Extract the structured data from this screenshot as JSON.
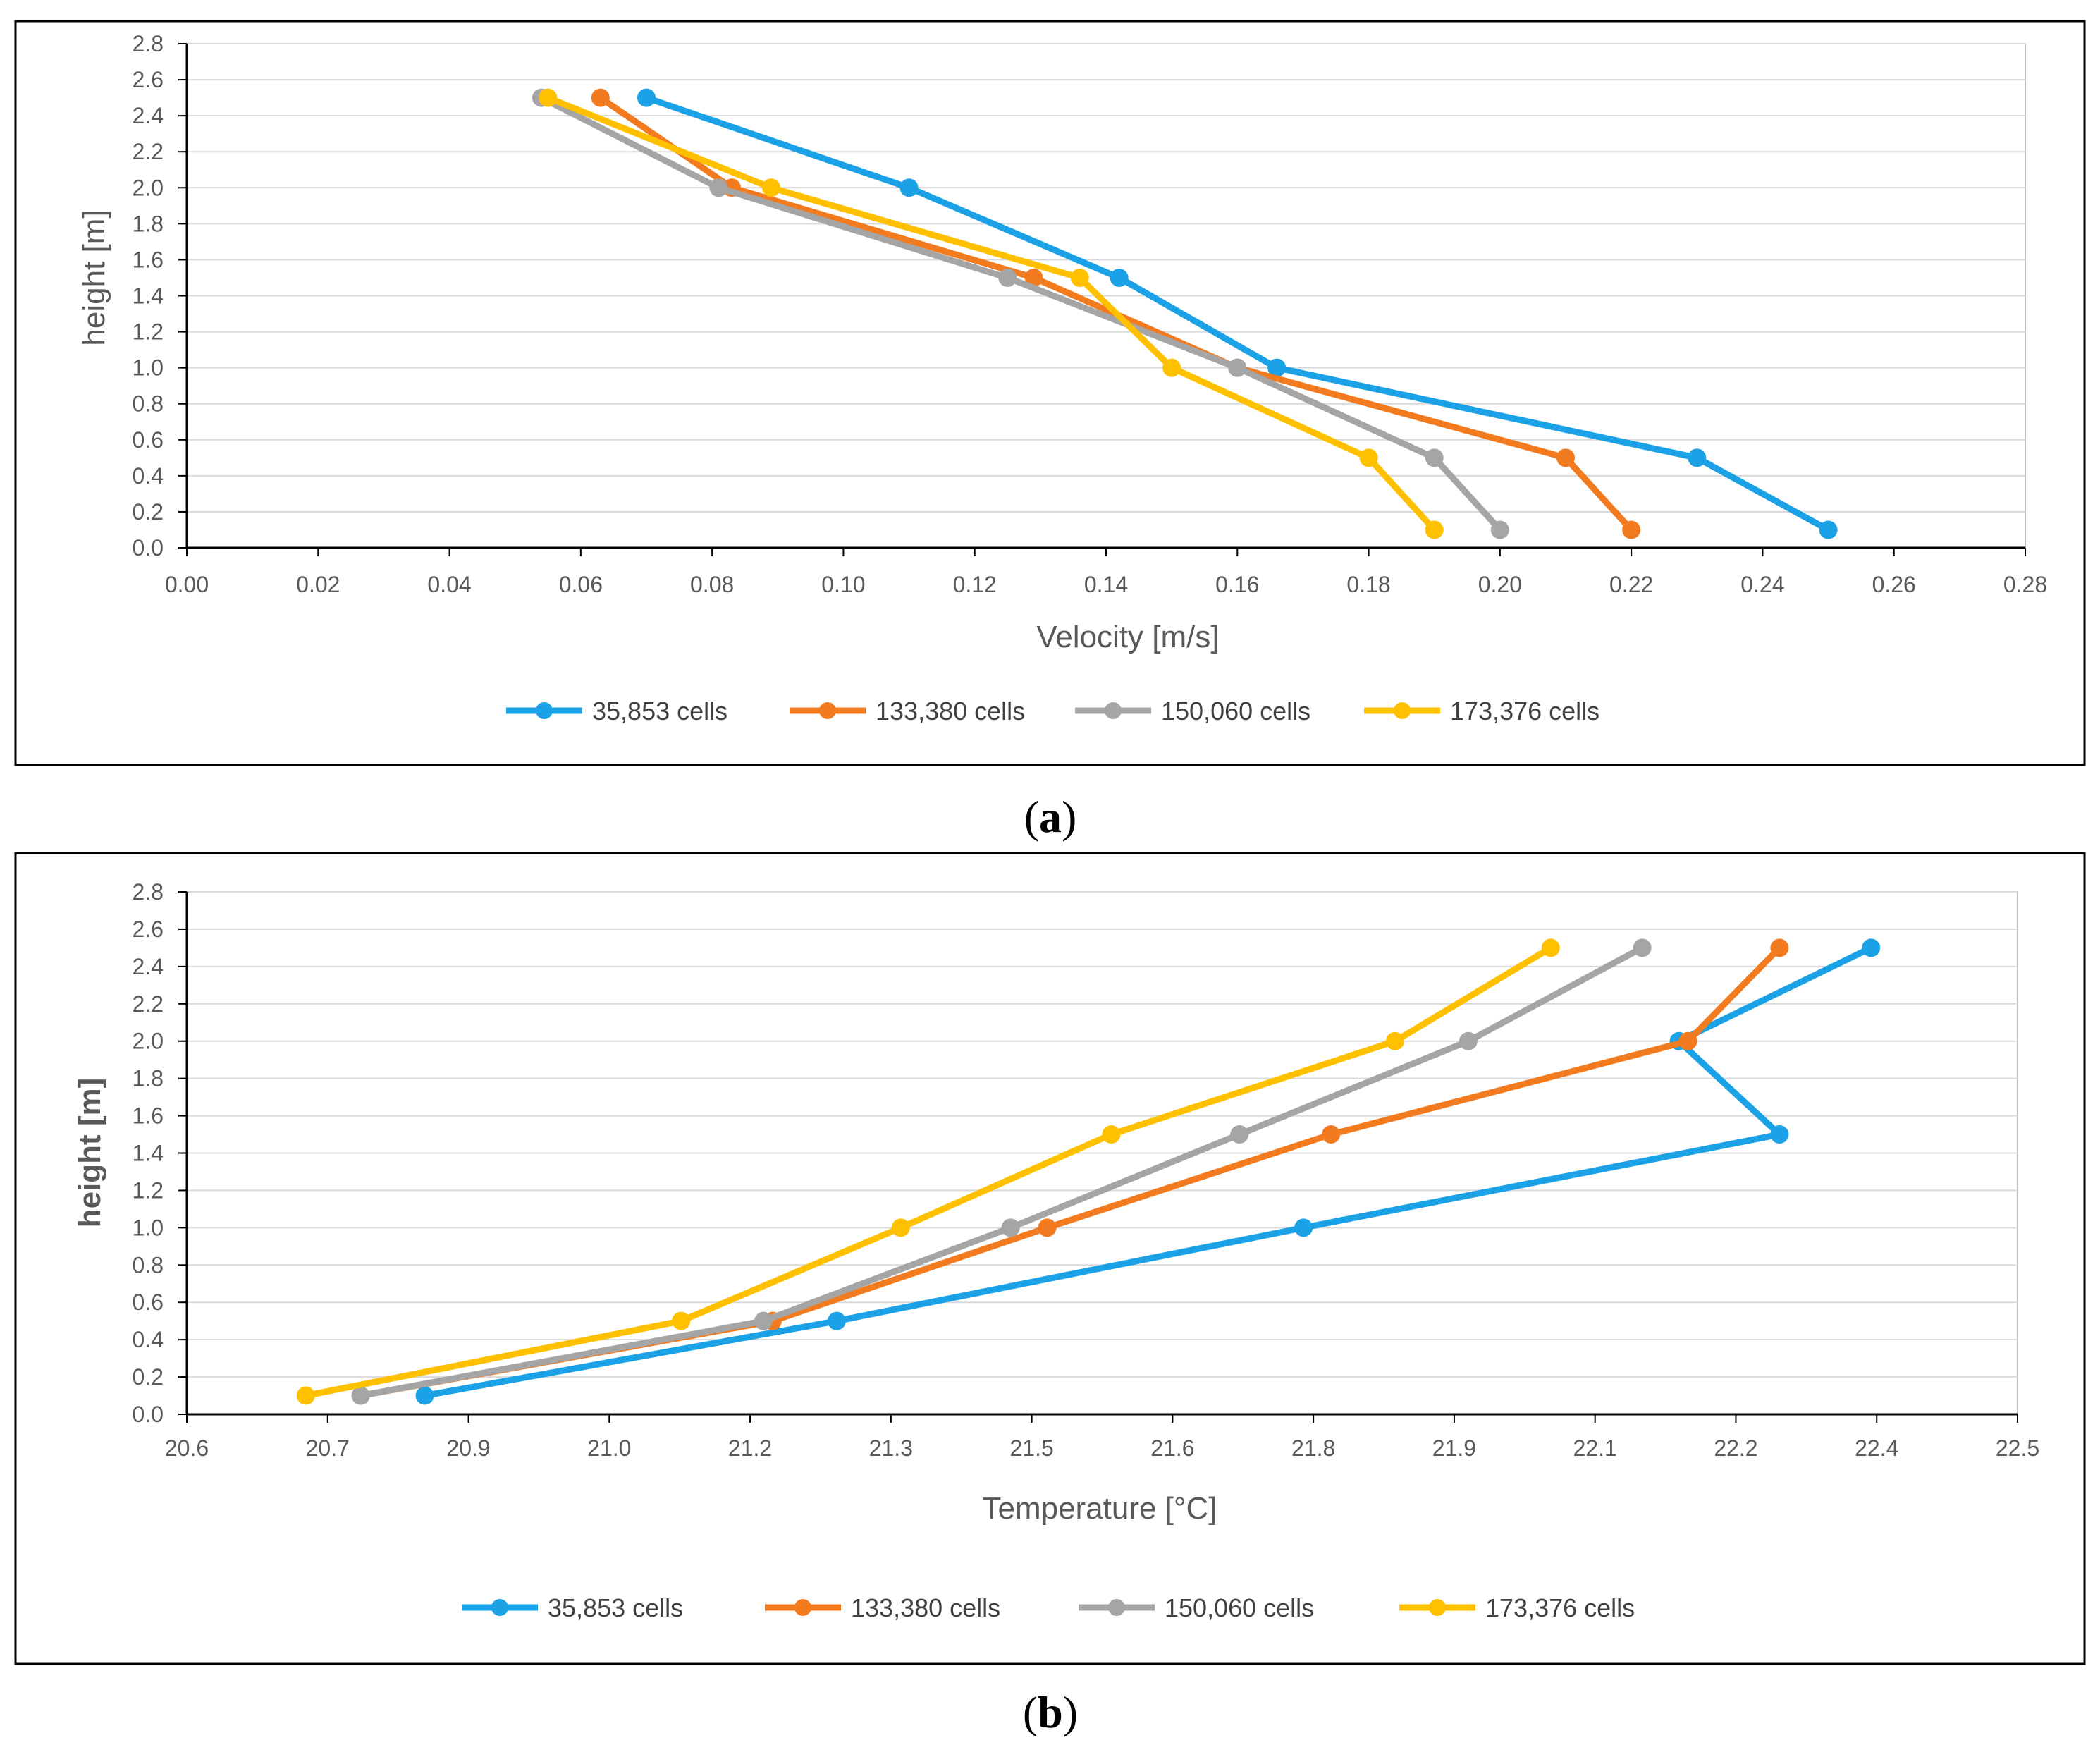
{
  "colors": {
    "series": [
      "#1aa1e6",
      "#f37b1f",
      "#a5a5a5",
      "#ffc000"
    ],
    "grid": "#d9d9d9",
    "axis": "#000000",
    "frame": "#000000"
  },
  "chart_data": [
    {
      "type": "line",
      "caption": {
        "open": "(",
        "letter": "a",
        "close": ")"
      },
      "xlabel": "Velocity [m/s]",
      "ylabel": "height [m]",
      "xlim": [
        0,
        0.28
      ],
      "ylim": [
        0,
        2.8
      ],
      "x_ticks": [
        "0.00",
        "0.02",
        "0.04",
        "0.06",
        "0.08",
        "0.10",
        "0.12",
        "0.14",
        "0.16",
        "0.18",
        "0.20",
        "0.22",
        "0.24",
        "0.26",
        "0.28"
      ],
      "y_ticks": [
        "0.0",
        "0.2",
        "0.4",
        "0.6",
        "0.8",
        "1.0",
        "1.2",
        "1.4",
        "1.6",
        "1.8",
        "2.0",
        "2.2",
        "2.4",
        "2.6",
        "2.8"
      ],
      "grid": "horizontal",
      "legend_position": "bottom",
      "y_values": [
        0.1,
        0.5,
        1.0,
        1.5,
        2.0,
        2.5
      ],
      "series": [
        {
          "name": "35,853 cells",
          "x": [
            0.25,
            0.23,
            0.166,
            0.142,
            0.11,
            0.07
          ]
        },
        {
          "name": "133,380 cells",
          "x": [
            0.22,
            0.21,
            0.16,
            0.129,
            0.083,
            0.063
          ]
        },
        {
          "name": "150,060 cells",
          "x": [
            0.2,
            0.19,
            0.16,
            0.125,
            0.081,
            0.054
          ]
        },
        {
          "name": "173,376 cells",
          "x": [
            0.19,
            0.18,
            0.15,
            0.136,
            0.089,
            0.055
          ]
        }
      ]
    },
    {
      "type": "line",
      "caption": {
        "open": "(",
        "letter": "b",
        "close": ")"
      },
      "xlabel": "Temperature [°C]",
      "ylabel": "height [m]",
      "xlim": [
        20.5,
        22.5
      ],
      "ylim": [
        0,
        2.8
      ],
      "x_ticks": [
        "20.6",
        "20.7",
        "20.9",
        "21.0",
        "21.2",
        "21.3",
        "21.5",
        "21.6",
        "21.8",
        "21.9",
        "22.1",
        "22.2",
        "22.4",
        "22.5"
      ],
      "y_ticks": [
        "0.0",
        "0.2",
        "0.4",
        "0.6",
        "0.8",
        "1.0",
        "1.2",
        "1.4",
        "1.6",
        "1.8",
        "2.0",
        "2.2",
        "2.4",
        "2.6",
        "2.8"
      ],
      "grid": "horizontal",
      "legend_position": "bottom",
      "y_values": [
        0.1,
        0.5,
        1.0,
        1.5,
        2.0,
        2.5
      ],
      "series": [
        {
          "name": "35,853 cells",
          "x": [
            20.76,
            21.21,
            21.72,
            22.24,
            22.13,
            22.34
          ]
        },
        {
          "name": "133,380 cells",
          "x": [
            20.69,
            21.14,
            21.44,
            21.75,
            22.14,
            22.24
          ]
        },
        {
          "name": "150,060 cells",
          "x": [
            20.69,
            21.13,
            21.4,
            21.65,
            21.9,
            22.09
          ]
        },
        {
          "name": "173,376 cells",
          "x": [
            20.63,
            21.04,
            21.28,
            21.51,
            21.82,
            21.99
          ]
        }
      ]
    }
  ]
}
